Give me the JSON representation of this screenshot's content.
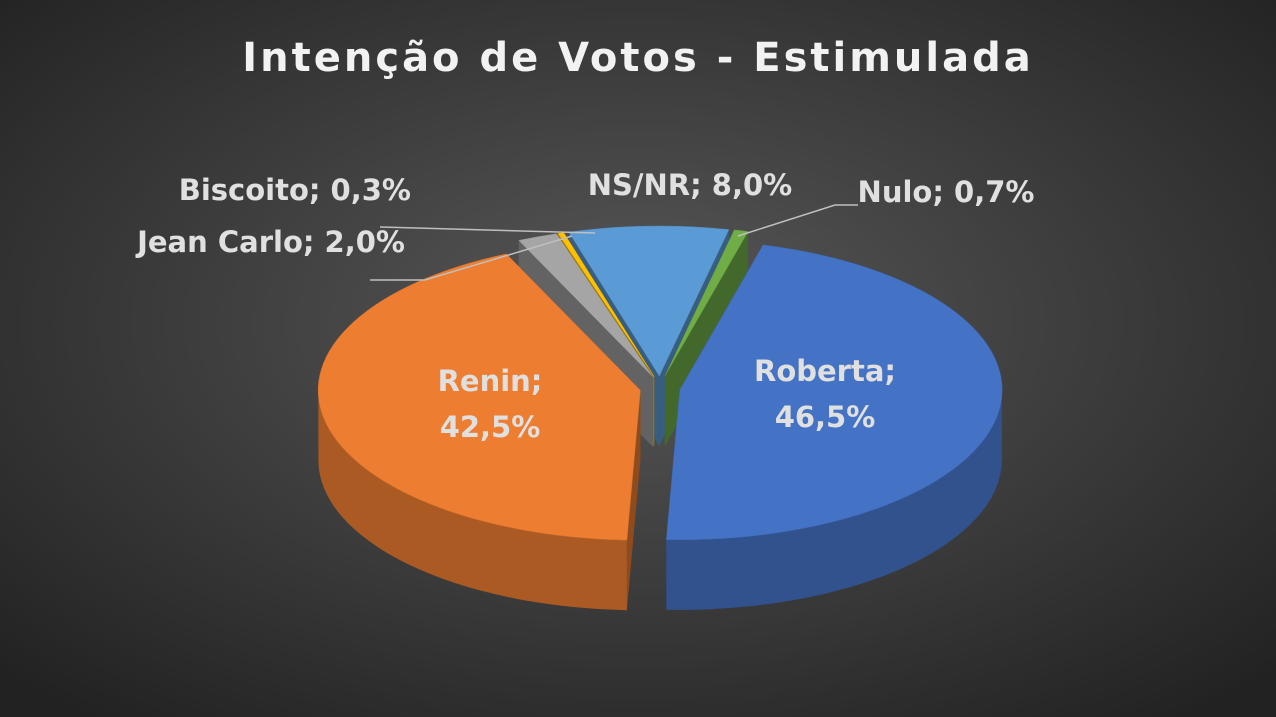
{
  "chart_data": {
    "type": "pie3d",
    "title": "Intenção de Votos - Estimulada",
    "values": [
      46.5,
      42.5,
      2.0,
      0.3,
      8.0,
      0.7
    ],
    "value_labels": [
      "Roberta; 46,5%",
      "Renin; 42,5%",
      "Jean Carlo; 2,0%",
      "Biscoito; 0,3%",
      "NS/NR; 8,0%",
      "Nulo; 0,7%"
    ],
    "colors": [
      "#4472c4",
      "#ed7d31",
      "#a5a5a5",
      "#ffc000",
      "#5b9bd5",
      "#70ad47"
    ]
  }
}
